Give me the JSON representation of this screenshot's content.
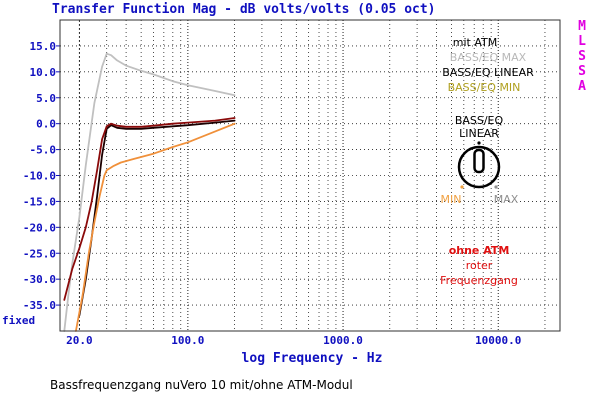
{
  "chart_data": {
    "type": "line",
    "title": "Transfer Function Mag - dB volts/volts (0.05 oct)",
    "xlabel": "log Frequency - Hz",
    "ylabel": "",
    "x_scale": "log",
    "xlim": [
      15,
      25000
    ],
    "ylim": [
      -40,
      20
    ],
    "x_ticks": [
      {
        "value": 20,
        "label": "20.0"
      },
      {
        "value": 100,
        "label": "100.0"
      },
      {
        "value": 1000,
        "label": "1000.0"
      },
      {
        "value": 10000,
        "label": "10000.0"
      }
    ],
    "y_ticks": [
      {
        "value": 15,
        "label": "15.0"
      },
      {
        "value": 10,
        "label": "10.0"
      },
      {
        "value": 5,
        "label": "5.0"
      },
      {
        "value": 0,
        "label": "0.0"
      },
      {
        "value": -5,
        "label": "-5.0"
      },
      {
        "value": -10,
        "label": "-10.0"
      },
      {
        "value": -15,
        "label": "-15.0"
      },
      {
        "value": -20,
        "label": "-20.0"
      },
      {
        "value": -25,
        "label": "-25.0"
      },
      {
        "value": -30,
        "label": "-30.0"
      },
      {
        "value": -35,
        "label": "-35.0"
      }
    ],
    "y_bottom_label": "fixed",
    "side_label": [
      "M",
      "L",
      "S",
      "S",
      "A"
    ],
    "grid": true,
    "series": [
      {
        "name": "BASS/EQ MAX",
        "color": "#c0c0c0",
        "x": [
          16,
          17,
          18,
          20,
          22,
          25,
          28,
          30,
          32,
          35,
          40,
          50,
          60,
          80,
          100,
          150,
          200
        ],
        "y": [
          -40,
          -33,
          -27,
          -18,
          -8,
          4,
          11,
          13.5,
          13.2,
          12.2,
          11.2,
          10.2,
          9.5,
          8.2,
          7.4,
          6.3,
          5.5
        ]
      },
      {
        "name": "BASS/EQ LINEAR",
        "color": "#1a0000",
        "x": [
          20,
          22,
          24,
          26,
          28,
          30,
          32,
          35,
          40,
          50,
          60,
          80,
          100,
          150,
          200
        ],
        "y": [
          -37,
          -30,
          -22,
          -14,
          -6,
          -1,
          -0.3,
          -0.8,
          -1,
          -1,
          -0.8,
          -0.5,
          -0.3,
          0.2,
          0.6
        ]
      },
      {
        "name": "ohne ATM",
        "color": "#8b0a0a",
        "x": [
          16,
          18,
          20,
          22,
          24,
          26,
          28,
          30,
          32,
          35,
          40,
          50,
          60,
          80,
          100,
          150,
          200
        ],
        "y": [
          -34,
          -28,
          -24,
          -20,
          -15,
          -9,
          -3,
          -0.5,
          0,
          -0.4,
          -0.6,
          -0.6,
          -0.4,
          0,
          0.2,
          0.6,
          1.1
        ]
      },
      {
        "name": "BASS/EQ MIN",
        "color": "#f0903a",
        "x": [
          19,
          21,
          23,
          25,
          27,
          29,
          30,
          33,
          37,
          45,
          60,
          80,
          100,
          150,
          200
        ],
        "y": [
          -40,
          -33,
          -25,
          -19,
          -14,
          -10,
          -9,
          -8.2,
          -7.5,
          -6.8,
          -5.8,
          -4.5,
          -3.6,
          -1.5,
          0
        ]
      }
    ]
  },
  "legend": {
    "heading": "mit ATM",
    "max": "BASS/EQ MAX",
    "linear": "BASS/EQ LINEAR",
    "min": "BASS/EQ MIN"
  },
  "knob": {
    "title_line1": "BASS/EQ",
    "title_line2": "LINEAR",
    "min_label": "MIN",
    "max_label": "MAX",
    "min_color": "#f0a040",
    "max_color": "#909090"
  },
  "note": {
    "heading": "ohne ATM",
    "line1": "roter",
    "line2": "Frequenzgang",
    "color": "#e01010"
  },
  "caption": "Bassfrequenzgang nuVero 10 mit/ohne ATM-Modul"
}
